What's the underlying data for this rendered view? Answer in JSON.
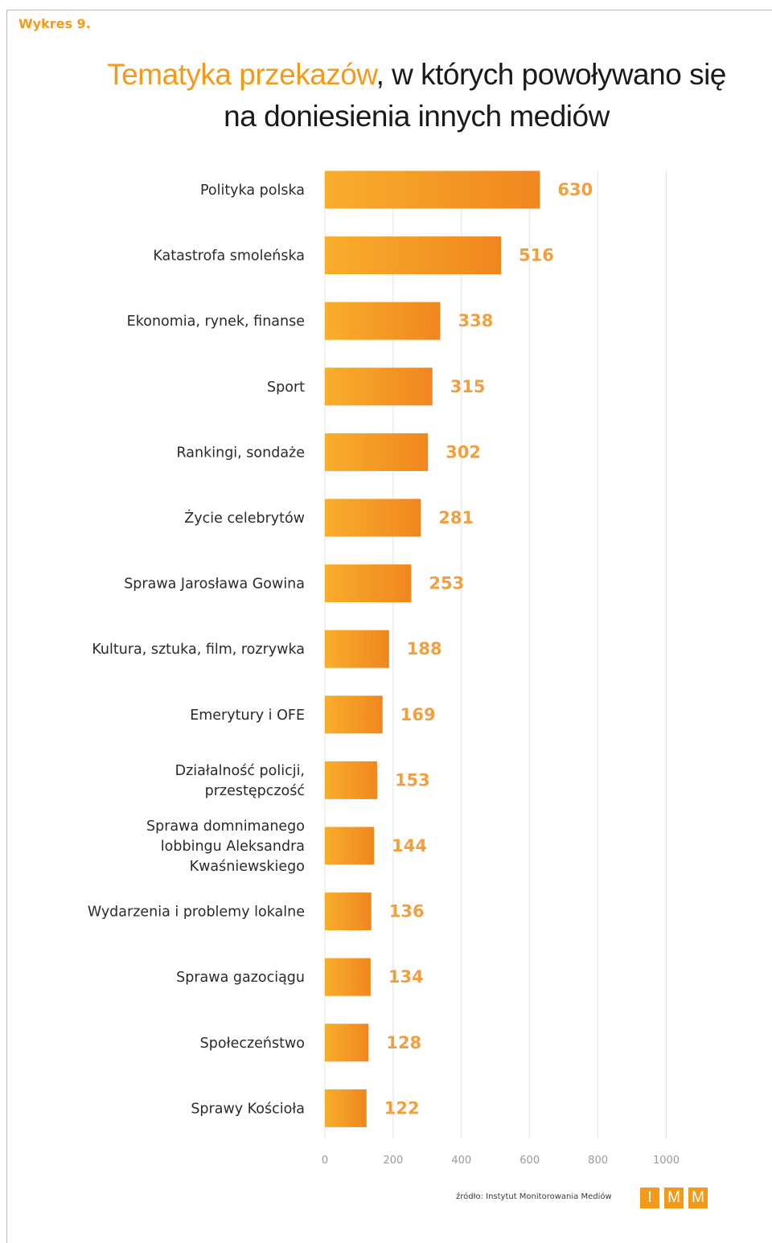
{
  "figure_label": "Wykres 9.",
  "title": {
    "line1_highlight": "Tematyka przekazów",
    "line1_rest": ", w których powoływano się",
    "line2": "na doniesienia innych mediów"
  },
  "source": "źródło: Instytut Monitorowania Mediów",
  "logo": [
    "I",
    "M",
    "M"
  ],
  "colors": {
    "accent": "#f39a1b",
    "bar_light": "#f8ae2c",
    "bar_dark": "#f0861f",
    "value_label": "#f0a040"
  },
  "chart_data": {
    "type": "bar",
    "orientation": "horizontal",
    "categories": [
      [
        "Polityka polska"
      ],
      [
        "Katastrofa smoleńska"
      ],
      [
        "Ekonomia, rynek, finanse"
      ],
      [
        "Sport"
      ],
      [
        "Rankingi, sondaże"
      ],
      [
        "Życie celebrytów"
      ],
      [
        "Sprawa Jarosława Gowina"
      ],
      [
        "Kultura, sztuka, film, rozrywka"
      ],
      [
        "Emerytury i OFE"
      ],
      [
        "Działalność policji,",
        "przestępczość"
      ],
      [
        "Sprawa domnimanego",
        "lobbingu Aleksandra",
        "Kwaśniewskiego"
      ],
      [
        "Wydarzenia i problemy lokalne"
      ],
      [
        "Sprawa gazociągu"
      ],
      [
        "Społeczeństwo"
      ],
      [
        "Sprawy Kościoła"
      ]
    ],
    "values": [
      630,
      516,
      338,
      315,
      302,
      281,
      253,
      188,
      169,
      153,
      144,
      136,
      134,
      128,
      122
    ],
    "xlim": [
      0,
      1000
    ],
    "xticks": [
      "0",
      "200",
      "400",
      "600",
      "800",
      "1000"
    ],
    "grid": true,
    "data_labels": true
  }
}
